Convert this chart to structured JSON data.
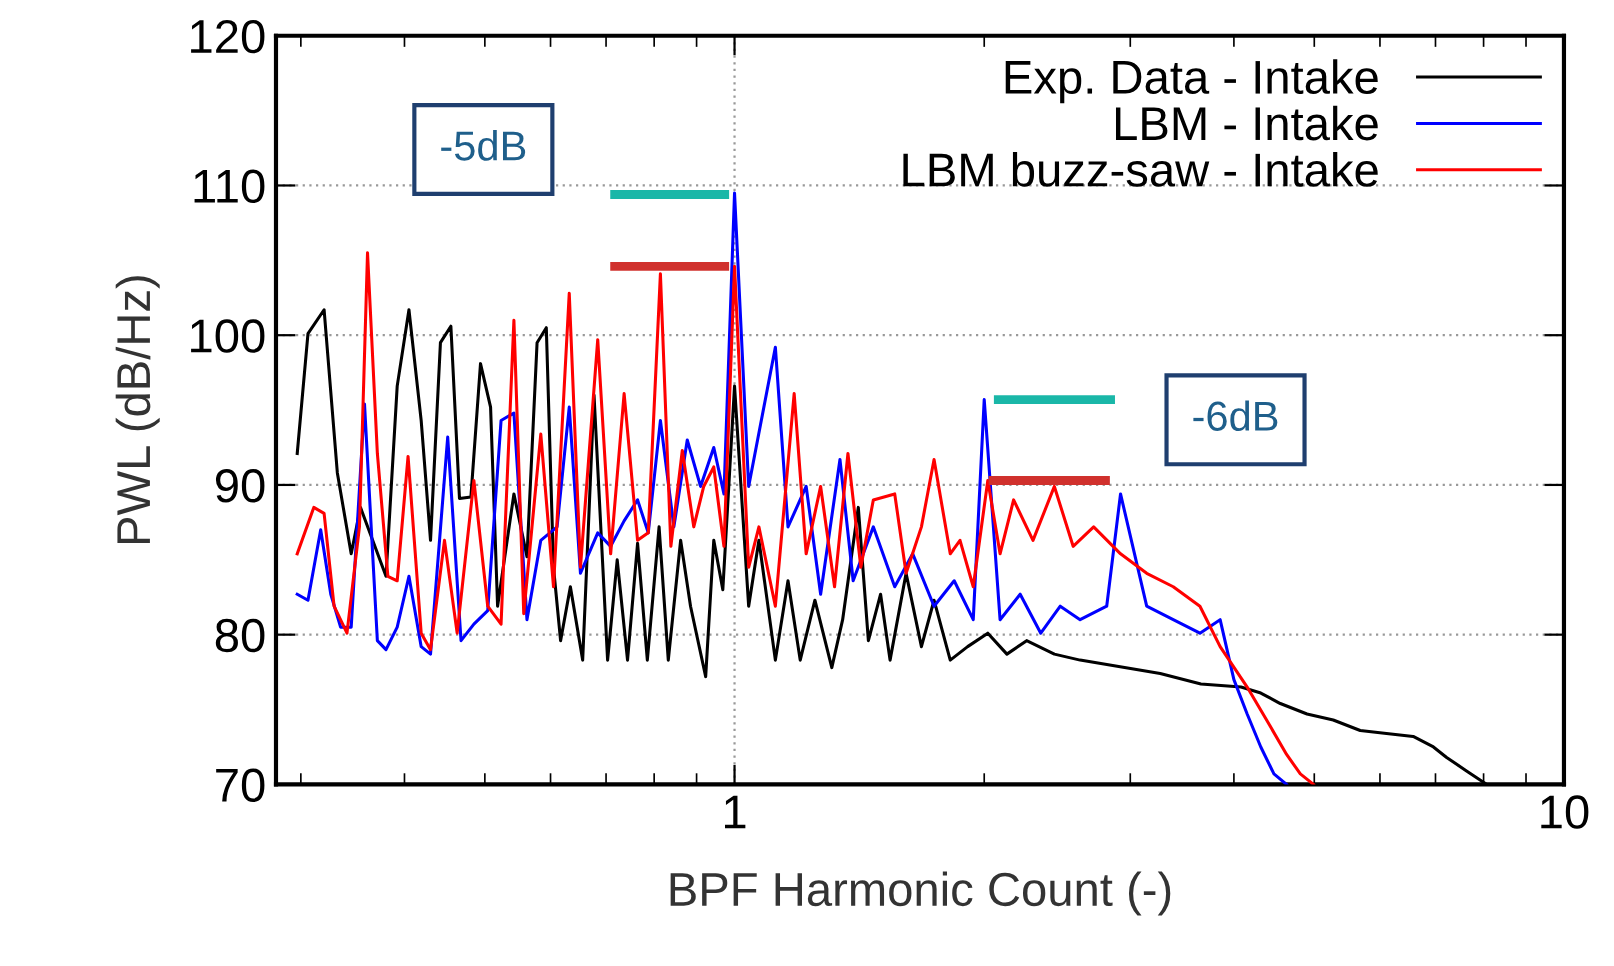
{
  "chart_data": {
    "type": "line",
    "xlabel": "BPF Harmonic Count (-)",
    "ylabel": "PWL (dB/Hz)",
    "log": "x",
    "xlim": [
      0.28,
      10
    ],
    "xticks": [
      1,
      10
    ],
    "ylim": [
      70,
      120
    ],
    "yticks": [
      70,
      80,
      90,
      100,
      110,
      120
    ],
    "grid": true,
    "legend": "top right",
    "line_style": "solid",
    "marker": "none",
    "series": [
      {
        "name": "Exp. Data - Intake",
        "color": "#000000",
        "x": [
          0.297,
          0.306,
          0.32,
          0.332,
          0.345,
          0.354,
          0.38,
          0.392,
          0.405,
          0.419,
          0.43,
          0.442,
          0.455,
          0.466,
          0.481,
          0.494,
          0.508,
          0.518,
          0.542,
          0.562,
          0.578,
          0.593,
          0.605,
          0.617,
          0.634,
          0.656,
          0.677,
          0.703,
          0.722,
          0.743,
          0.764,
          0.785,
          0.811,
          0.832,
          0.861,
          0.885,
          0.923,
          0.944,
          0.968,
          1.0,
          1.04,
          1.07,
          1.12,
          1.16,
          1.2,
          1.25,
          1.31,
          1.35,
          1.41,
          1.45,
          1.5,
          1.54,
          1.61,
          1.68,
          1.74,
          1.82,
          1.91,
          2.02,
          2.13,
          2.25,
          2.43,
          2.61,
          3.26,
          3.65,
          4.08,
          4.31,
          4.55,
          4.9,
          5.27,
          5.68,
          6.11,
          6.58,
          6.96,
          7.22,
          7.63,
          8.07
        ],
        "values": [
          92.1,
          100.1,
          101.7,
          90.8,
          85.4,
          88.5,
          83.9,
          96.6,
          101.7,
          94.3,
          86.3,
          99.5,
          100.6,
          89.1,
          89.2,
          98.1,
          95.2,
          81.9,
          89.4,
          85.2,
          99.5,
          100.5,
          84.5,
          79.6,
          83.2,
          78.3,
          96.0,
          78.3,
          85.0,
          78.3,
          86.1,
          78.3,
          87.2,
          78.3,
          86.3,
          81.9,
          77.2,
          86.3,
          83.0,
          96.6,
          81.9,
          86.3,
          78.3,
          83.6,
          78.3,
          82.3,
          77.8,
          81.0,
          88.5,
          79.6,
          82.7,
          78.3,
          84.1,
          79.2,
          82.3,
          78.3,
          79.2,
          80.1,
          78.7,
          79.6,
          78.7,
          78.3,
          77.4,
          76.7,
          76.5,
          76.1,
          75.4,
          74.7,
          74.3,
          73.6,
          73.4,
          73.2,
          72.5,
          71.8,
          70.9,
          70.0
        ]
      },
      {
        "name": "LBM - Intake",
        "color": "#0000ff",
        "x": [
          0.297,
          0.306,
          0.317,
          0.326,
          0.335,
          0.345,
          0.358,
          0.371,
          0.38,
          0.392,
          0.405,
          0.419,
          0.43,
          0.451,
          0.468,
          0.485,
          0.504,
          0.523,
          0.542,
          0.562,
          0.584,
          0.611,
          0.632,
          0.652,
          0.684,
          0.709,
          0.736,
          0.764,
          0.787,
          0.814,
          0.845,
          0.877,
          0.91,
          0.944,
          0.971,
          1.0,
          1.04,
          1.12,
          1.16,
          1.22,
          1.27,
          1.34,
          1.39,
          1.47,
          1.56,
          1.64,
          1.74,
          1.84,
          1.94,
          2.0,
          2.09,
          2.21,
          2.34,
          2.47,
          2.61,
          2.81,
          2.92,
          3.14,
          3.38,
          3.64,
          3.85,
          4.0,
          4.15,
          4.31,
          4.47,
          4.63
        ],
        "values": [
          82.7,
          82.3,
          87.0,
          82.7,
          80.5,
          80.5,
          95.4,
          79.6,
          79.0,
          80.5,
          83.9,
          79.2,
          78.7,
          93.2,
          79.6,
          80.7,
          81.6,
          94.3,
          94.8,
          81.0,
          86.3,
          87.2,
          95.2,
          84.1,
          86.8,
          85.9,
          87.6,
          89.0,
          86.8,
          94.3,
          87.2,
          93.0,
          89.9,
          92.5,
          89.4,
          109.5,
          89.9,
          99.2,
          87.2,
          89.9,
          82.7,
          91.7,
          83.6,
          87.2,
          83.2,
          85.4,
          81.9,
          83.6,
          81.0,
          95.7,
          81.0,
          82.7,
          80.1,
          81.9,
          81.0,
          81.9,
          89.4,
          81.9,
          81.0,
          80.1,
          81.0,
          77.0,
          74.7,
          72.5,
          70.7,
          70.0
        ]
      },
      {
        "name": "LBM buzz-saw - Intake",
        "color": "#ff0000",
        "x": [
          0.297,
          0.311,
          0.32,
          0.329,
          0.341,
          0.353,
          0.361,
          0.371,
          0.382,
          0.392,
          0.404,
          0.419,
          0.43,
          0.447,
          0.463,
          0.485,
          0.504,
          0.523,
          0.542,
          0.557,
          0.584,
          0.605,
          0.632,
          0.652,
          0.684,
          0.709,
          0.736,
          0.764,
          0.787,
          0.814,
          0.838,
          0.865,
          0.893,
          0.918,
          0.944,
          0.971,
          1.0,
          1.04,
          1.07,
          1.12,
          1.18,
          1.22,
          1.27,
          1.32,
          1.37,
          1.42,
          1.47,
          1.56,
          1.61,
          1.68,
          1.74,
          1.82,
          1.87,
          1.94,
          2.02,
          2.09,
          2.17,
          2.29,
          2.43,
          2.56,
          2.71,
          2.92,
          3.14,
          3.38,
          3.64,
          3.85,
          4.15,
          4.38,
          4.63,
          4.81,
          4.99
        ],
        "values": [
          85.4,
          88.5,
          88.1,
          81.9,
          80.1,
          87.2,
          105.5,
          92.1,
          83.9,
          83.6,
          91.9,
          80.1,
          79.0,
          86.3,
          80.1,
          90.3,
          81.9,
          80.7,
          101.0,
          81.4,
          93.4,
          83.2,
          102.8,
          84.5,
          99.7,
          85.4,
          96.1,
          86.3,
          86.8,
          104.1,
          85.9,
          92.3,
          87.2,
          89.9,
          91.2,
          85.9,
          104.6,
          84.5,
          87.2,
          81.9,
          96.1,
          85.4,
          89.9,
          83.2,
          92.1,
          84.5,
          89.0,
          89.4,
          84.1,
          87.2,
          91.7,
          85.4,
          86.3,
          83.2,
          90.3,
          85.4,
          89.0,
          86.3,
          89.9,
          85.9,
          87.2,
          85.4,
          84.1,
          83.2,
          81.9,
          79.2,
          76.5,
          74.3,
          72.0,
          70.7,
          70.0
        ]
      },
      {
        "color": "#1ab7a8",
        "x": [
          0.717,
          0.973
        ],
        "values": [
          109.4,
          109.4
        ]
      },
      {
        "color": "#d0312d",
        "x": [
          0.717,
          0.973
        ],
        "values": [
          104.6,
          104.6
        ]
      },
      {
        "color": "#1ab7a8",
        "x": [
          2.08,
          2.84
        ],
        "values": [
          95.7,
          95.7
        ]
      },
      {
        "color": "#d0312d",
        "x": [
          2.05,
          2.8
        ],
        "values": [
          90.3,
          90.3
        ]
      }
    ],
    "annotations": [
      "-5dB",
      "-6dB"
    ]
  }
}
